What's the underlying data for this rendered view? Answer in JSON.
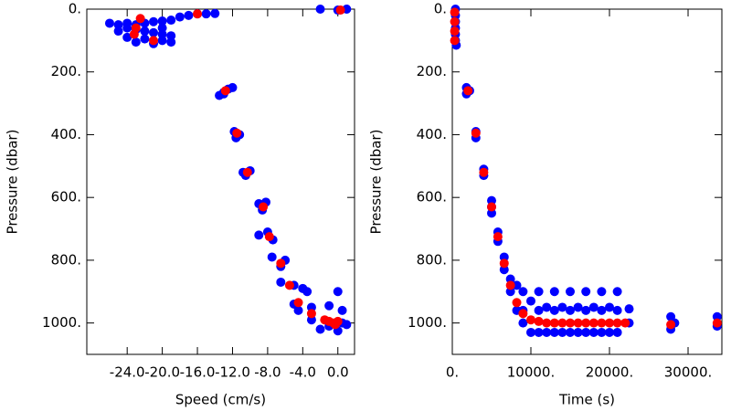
{
  "chart_data": [
    {
      "type": "scatter",
      "xlabel": "Speed (cm/s)",
      "ylabel": "Pressure (dbar)",
      "xlim": [
        -28.6,
        1.9
      ],
      "ylim": [
        0,
        1100
      ],
      "y_inverted": true,
      "xticks": [
        {
          "value": -24,
          "label": "-24.0"
        },
        {
          "value": -20,
          "label": "-20.0"
        },
        {
          "value": -16,
          "label": "-16.0"
        },
        {
          "value": -12,
          "label": "-12.0"
        },
        {
          "value": -8,
          "label": "-8.0"
        },
        {
          "value": -4,
          "label": "-4.0"
        },
        {
          "value": 0,
          "label": "0.0"
        }
      ],
      "yticks": [
        {
          "value": 0,
          "label": "0."
        },
        {
          "value": 200,
          "label": "200."
        },
        {
          "value": 400,
          "label": "400."
        },
        {
          "value": 600,
          "label": "600."
        },
        {
          "value": 800,
          "label": "800."
        },
        {
          "value": 1000,
          "label": "1000."
        }
      ],
      "series": [
        {
          "color": "#0000ff",
          "x": [
            -26,
            -25,
            -24,
            -23,
            -22,
            -21,
            -20,
            -19,
            -18,
            -17,
            -16,
            -15,
            -14,
            -24,
            -23,
            -22,
            -21,
            -20,
            -19,
            -24,
            -22,
            -20,
            -23,
            -21,
            -19,
            -2,
            0,
            1,
            -25,
            -20,
            -13.5,
            -13,
            -12.5,
            -12,
            -13,
            -11.8,
            -11.2,
            -11.6,
            -10.8,
            -10,
            -10.5,
            -9,
            -8.2,
            -8.6,
            -9,
            -8,
            -7.4,
            -7.5,
            -6,
            -6.5,
            -6.5,
            -5,
            -4,
            -3.5,
            -5,
            -3,
            -1,
            0.5,
            -3,
            -1,
            1,
            0,
            -2,
            0,
            0.5,
            -4.5
          ],
          "values": [
            45,
            50,
            45,
            50,
            45,
            40,
            38,
            35,
            25,
            20,
            15,
            15,
            14,
            60,
            65,
            70,
            75,
            80,
            85,
            90,
            95,
            100,
            105,
            110,
            105,
            0,
            3,
            0,
            70,
            60,
            275,
            265,
            255,
            250,
            270,
            390,
            400,
            410,
            520,
            515,
            530,
            620,
            615,
            640,
            720,
            710,
            735,
            790,
            800,
            820,
            870,
            880,
            890,
            900,
            940,
            950,
            945,
            960,
            990,
            1010,
            1005,
            1025,
            1020,
            900,
            1000,
            960
          ]
        },
        {
          "color": "#ff0000",
          "x": [
            -22.5,
            -23,
            -23.2,
            -21,
            -16,
            -12.8,
            -11.5,
            -10.3,
            -8.5,
            -7.8,
            -6.5,
            -5.5,
            -4.5,
            -3,
            -1.5,
            -1,
            -0.5,
            0,
            -0.3,
            0.3
          ],
          "values": [
            30,
            60,
            80,
            100,
            15,
            260,
            395,
            520,
            630,
            725,
            810,
            880,
            935,
            970,
            990,
            995,
            1000,
            995,
            1005,
            3
          ]
        }
      ]
    },
    {
      "type": "scatter",
      "xlabel": "Time (s)",
      "ylabel": "Pressure (dbar)",
      "xlim": [
        0,
        34300
      ],
      "ylim": [
        0,
        1100
      ],
      "y_inverted": true,
      "xticks": [
        {
          "value": 0,
          "label": "0."
        },
        {
          "value": 10000,
          "label": "10000."
        },
        {
          "value": 20000,
          "label": "20000."
        },
        {
          "value": 30000,
          "label": "30000."
        }
      ],
      "yticks": [
        {
          "value": 0,
          "label": "0."
        },
        {
          "value": 200,
          "label": "200."
        },
        {
          "value": 400,
          "label": "400."
        },
        {
          "value": 600,
          "label": "600."
        },
        {
          "value": 800,
          "label": "800."
        },
        {
          "value": 1000,
          "label": "1000."
        }
      ],
      "series": [
        {
          "color": "#0000ff",
          "x": [
            400,
            400,
            400,
            400,
            400,
            400,
            500,
            1800,
            1800,
            2200,
            3000,
            3000,
            4000,
            4000,
            5000,
            5000,
            5000,
            5800,
            5800,
            6600,
            6600,
            7400,
            7400,
            8200,
            8200,
            9000,
            9000,
            9000,
            10000,
            10000,
            11000,
            11000,
            11000,
            12000,
            12000,
            13000,
            13000,
            13000,
            14000,
            14000,
            15000,
            15000,
            15000,
            16000,
            16000,
            17000,
            17000,
            17000,
            18000,
            18000,
            19000,
            19000,
            19000,
            20000,
            20000,
            21000,
            21000,
            21000,
            22500,
            22500,
            27800,
            27800,
            28300,
            33700,
            33700
          ],
          "values": [
            0,
            20,
            40,
            60,
            80,
            100,
            115,
            250,
            270,
            260,
            390,
            410,
            510,
            530,
            610,
            630,
            650,
            710,
            740,
            790,
            830,
            860,
            900,
            880,
            960,
            900,
            960,
            1000,
            930,
            1030,
            900,
            960,
            1030,
            950,
            1030,
            900,
            960,
            1030,
            950,
            1030,
            900,
            960,
            1030,
            950,
            1030,
            900,
            960,
            1030,
            950,
            1030,
            900,
            960,
            1030,
            950,
            1030,
            900,
            960,
            1030,
            955,
            1000,
            980,
            1020,
            1000,
            980,
            1010
          ]
        },
        {
          "color": "#ff0000",
          "x": [
            300,
            300,
            300,
            300,
            2000,
            3000,
            4000,
            5000,
            5800,
            6600,
            7400,
            8200,
            9000,
            10000,
            11000,
            12000,
            13000,
            14000,
            15000,
            16000,
            17000,
            18000,
            19000,
            20000,
            21000,
            22000,
            27800,
            33700
          ],
          "values": [
            10,
            40,
            70,
            100,
            260,
            395,
            520,
            630,
            725,
            810,
            880,
            935,
            970,
            990,
            995,
            1000,
            1000,
            1000,
            1000,
            1000,
            1000,
            1000,
            1000,
            1000,
            1000,
            1000,
            1005,
            1000
          ]
        }
      ]
    }
  ]
}
